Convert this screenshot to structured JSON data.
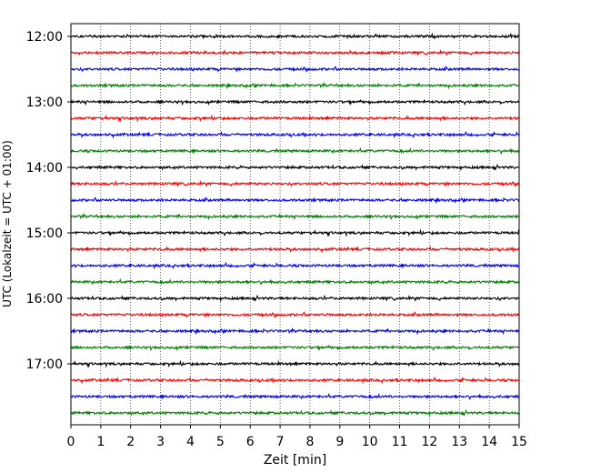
{
  "chart_data": {
    "type": "line",
    "title": "",
    "xlabel": "Zeit  [min]",
    "ylabel": "UTC (Lokalzeit = UTC + 01:00)",
    "xlim": [
      0,
      15
    ],
    "x_ticks": [
      "0",
      "1",
      "2",
      "3",
      "4",
      "5",
      "6",
      "7",
      "8",
      "9",
      "10",
      "11",
      "12",
      "13",
      "14",
      "15"
    ],
    "y_ticks": [
      "12:00",
      "13:00",
      "14:00",
      "15:00",
      "16:00",
      "17:00"
    ],
    "grid": "vertical-dotted",
    "trace_interval_min": 15,
    "trace_start": "12:00",
    "trace_count": 24,
    "trace_colors": [
      "#000000",
      "#ff0000",
      "#0000ff",
      "#008000"
    ],
    "series": [
      {
        "start": "12:00"
      },
      {
        "start": "12:15"
      },
      {
        "start": "12:30"
      },
      {
        "start": "12:45"
      },
      {
        "start": "13:00"
      },
      {
        "start": "13:15"
      },
      {
        "start": "13:30"
      },
      {
        "start": "13:45"
      },
      {
        "start": "14:00"
      },
      {
        "start": "14:15"
      },
      {
        "start": "14:30"
      },
      {
        "start": "14:45"
      },
      {
        "start": "15:00"
      },
      {
        "start": "15:15"
      },
      {
        "start": "15:30"
      },
      {
        "start": "15:45"
      },
      {
        "start": "16:00"
      },
      {
        "start": "16:15"
      },
      {
        "start": "16:30"
      },
      {
        "start": "16:45"
      },
      {
        "start": "17:00"
      },
      {
        "start": "17:15"
      },
      {
        "start": "17:30"
      },
      {
        "start": "17:45"
      }
    ]
  }
}
